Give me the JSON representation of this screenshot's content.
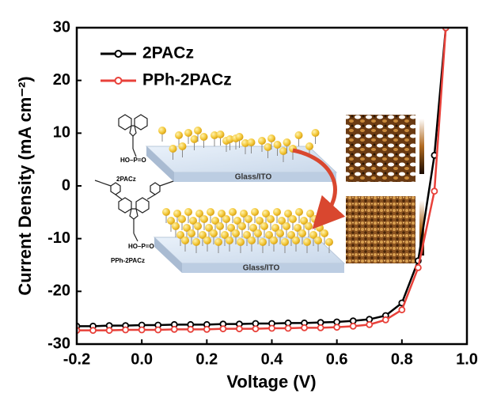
{
  "chart_data": {
    "type": "line",
    "x_label": "Voltage (V)",
    "y_label": "Current Density (mA cm⁻²)",
    "x": [
      -0.2,
      -0.15,
      -0.1,
      -0.05,
      0,
      0.05,
      0.1,
      0.15,
      0.2,
      0.25,
      0.3,
      0.35,
      0.4,
      0.45,
      0.5,
      0.55,
      0.6,
      0.65,
      0.7,
      0.75,
      0.8,
      0.85,
      0.9,
      0.935
    ],
    "series": [
      {
        "name": "2PACz",
        "color": "#000000",
        "values": [
          -26.6,
          -26.6,
          -26.5,
          -26.5,
          -26.4,
          -26.4,
          -26.3,
          -26.3,
          -26.3,
          -26.2,
          -26.2,
          -26.1,
          -26.1,
          -26.0,
          -26.0,
          -25.9,
          -25.8,
          -25.6,
          -25.3,
          -24.6,
          -22.2,
          -14.2,
          5.8,
          30
        ]
      },
      {
        "name": "PPh-2PACz",
        "color": "#e8413a",
        "values": [
          -27.4,
          -27.4,
          -27.4,
          -27.3,
          -27.3,
          -27.3,
          -27.2,
          -27.2,
          -27.2,
          -27.1,
          -27.1,
          -27.1,
          -27.0,
          -27.0,
          -26.9,
          -26.9,
          -26.8,
          -26.6,
          -26.3,
          -25.4,
          -23.5,
          -15.5,
          -1.0,
          30
        ]
      }
    ],
    "xlim": [
      -0.2,
      1.0
    ],
    "xticks": [
      -0.2,
      {
        "value": 0,
        "label": "0.0"
      },
      0.2,
      0.4,
      0.6,
      0.8,
      {
        "value": 1,
        "label": "1.0"
      }
    ],
    "ylim": [
      -30,
      30
    ],
    "yticks": [
      -30,
      -20,
      -10,
      0,
      10,
      20,
      30
    ],
    "annotations": [
      "2PACz",
      "PPh-2PACz",
      "Glass/ITO",
      "Glass/ITO"
    ]
  }
}
